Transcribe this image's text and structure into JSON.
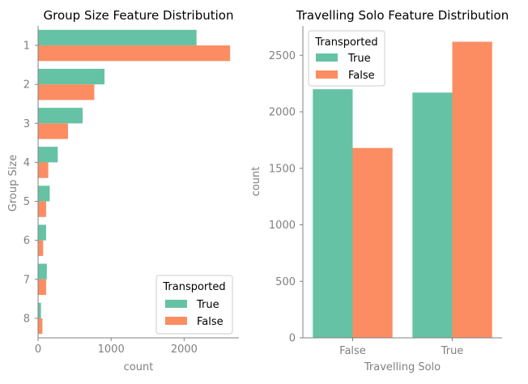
{
  "colors": {
    "true": "#66c2a5",
    "false": "#fc8d62",
    "axis": "#808080",
    "tick_text": "#808080",
    "title": "#000000"
  },
  "chart_data": [
    {
      "type": "bar",
      "orientation": "horizontal",
      "title": "Group Size Feature Distribution",
      "xlabel": "count",
      "ylabel": "Group Size",
      "categories": [
        "1",
        "2",
        "3",
        "4",
        "5",
        "6",
        "7",
        "8"
      ],
      "xlim": [
        0,
        2750
      ],
      "xticks": [
        0,
        1000,
        2000
      ],
      "xtick_labels": [
        "0",
        "1000",
        "2000"
      ],
      "legend": {
        "title": "Transported",
        "placement": "lower-right"
      },
      "series": [
        {
          "name": "True",
          "values": [
            2170,
            910,
            610,
            270,
            160,
            110,
            120,
            40
          ]
        },
        {
          "name": "False",
          "values": [
            2630,
            770,
            410,
            140,
            110,
            70,
            110,
            60
          ]
        }
      ]
    },
    {
      "type": "bar",
      "orientation": "vertical",
      "title": "Travelling Solo Feature Distribution",
      "xlabel": "Travelling Solo",
      "ylabel": "count",
      "categories": [
        "False",
        "True"
      ],
      "ylim": [
        0,
        2760
      ],
      "yticks": [
        0,
        500,
        1000,
        1500,
        2000,
        2500
      ],
      "ytick_labels": [
        "0",
        "500",
        "1000",
        "1500",
        "2000",
        "2500"
      ],
      "legend": {
        "title": "Transported",
        "placement": "upper-left"
      },
      "series": [
        {
          "name": "True",
          "values": [
            2200,
            2170
          ]
        },
        {
          "name": "False",
          "values": [
            1680,
            2620
          ]
        }
      ]
    }
  ]
}
